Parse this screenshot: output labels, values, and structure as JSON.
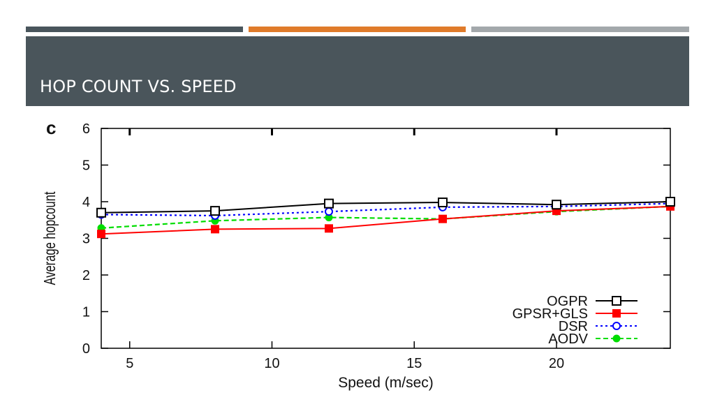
{
  "slide": {
    "title": "HOP COUNT VS. SPEED",
    "accent_colors": [
      "#49555C",
      "#E07B2A",
      "#A3A8AB"
    ],
    "band_color": "#4A555B"
  },
  "chart_data": {
    "type": "line",
    "panel_label": "c",
    "xlabel": "Speed (m/sec)",
    "ylabel": "Average hopcount",
    "xlim": [
      4,
      24
    ],
    "ylim": [
      0,
      6
    ],
    "xticks": [
      5,
      10,
      15,
      20
    ],
    "yticks": [
      0,
      1,
      2,
      3,
      4,
      5,
      6
    ],
    "x": [
      4,
      8,
      12,
      16,
      20,
      24
    ],
    "grid": false,
    "legend_position": "bottom-right",
    "series": [
      {
        "name": "OGPR",
        "values": [
          3.7,
          3.75,
          3.95,
          3.98,
          3.92,
          4.0
        ],
        "color": "#000000",
        "marker": "open-square",
        "dash": "solid"
      },
      {
        "name": "GPSR+GLS",
        "values": [
          3.12,
          3.25,
          3.27,
          3.53,
          3.75,
          3.87
        ],
        "color": "#FF0000",
        "marker": "filled-square",
        "dash": "solid"
      },
      {
        "name": "DSR",
        "values": [
          3.65,
          3.62,
          3.73,
          3.85,
          3.87,
          3.95
        ],
        "color": "#0000FF",
        "marker": "open-circle",
        "dash": "dotted"
      },
      {
        "name": "AODV",
        "values": [
          3.28,
          3.48,
          3.57,
          3.53,
          3.73,
          3.87
        ],
        "color": "#00DD00",
        "marker": "filled-circle",
        "dash": "dashed"
      }
    ]
  }
}
